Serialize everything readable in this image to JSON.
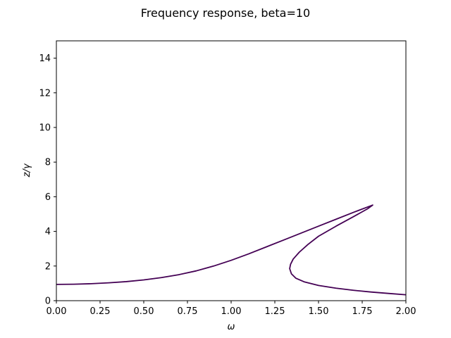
{
  "chart_data": {
    "type": "line",
    "title": "Frequency response, beta=10",
    "xlabel": "ω",
    "ylabel": "z/γ",
    "xlim": [
      0,
      2.0
    ],
    "ylim": [
      0,
      15
    ],
    "x_ticks": [
      "0.00",
      "0.25",
      "0.50",
      "0.75",
      "1.00",
      "1.25",
      "1.50",
      "1.75",
      "2.00"
    ],
    "y_ticks": [
      "0",
      "2",
      "4",
      "6",
      "8",
      "10",
      "12",
      "14"
    ],
    "grid": false,
    "legend": "none",
    "series": [
      {
        "color": "#440154",
        "points": [
          [
            0.0,
            0.94
          ],
          [
            0.1,
            0.95
          ],
          [
            0.2,
            0.98
          ],
          [
            0.3,
            1.03
          ],
          [
            0.4,
            1.1
          ],
          [
            0.5,
            1.2
          ],
          [
            0.6,
            1.33
          ],
          [
            0.7,
            1.5
          ],
          [
            0.8,
            1.72
          ],
          [
            0.9,
            2.0
          ],
          [
            1.0,
            2.33
          ],
          [
            1.1,
            2.7
          ],
          [
            1.2,
            3.1
          ],
          [
            1.3,
            3.5
          ],
          [
            1.4,
            3.9
          ],
          [
            1.5,
            4.3
          ],
          [
            1.6,
            4.7
          ],
          [
            1.7,
            5.1
          ],
          [
            1.8,
            5.48
          ],
          [
            1.81,
            5.52
          ],
          [
            1.78,
            5.3
          ],
          [
            1.7,
            4.85
          ],
          [
            1.6,
            4.3
          ],
          [
            1.5,
            3.72
          ],
          [
            1.44,
            3.25
          ],
          [
            1.39,
            2.8
          ],
          [
            1.355,
            2.4
          ],
          [
            1.34,
            2.1
          ],
          [
            1.335,
            1.85
          ],
          [
            1.345,
            1.55
          ],
          [
            1.37,
            1.3
          ],
          [
            1.42,
            1.08
          ],
          [
            1.5,
            0.88
          ],
          [
            1.6,
            0.72
          ],
          [
            1.7,
            0.6
          ],
          [
            1.8,
            0.5
          ],
          [
            1.9,
            0.42
          ],
          [
            2.0,
            0.34
          ]
        ]
      }
    ]
  }
}
